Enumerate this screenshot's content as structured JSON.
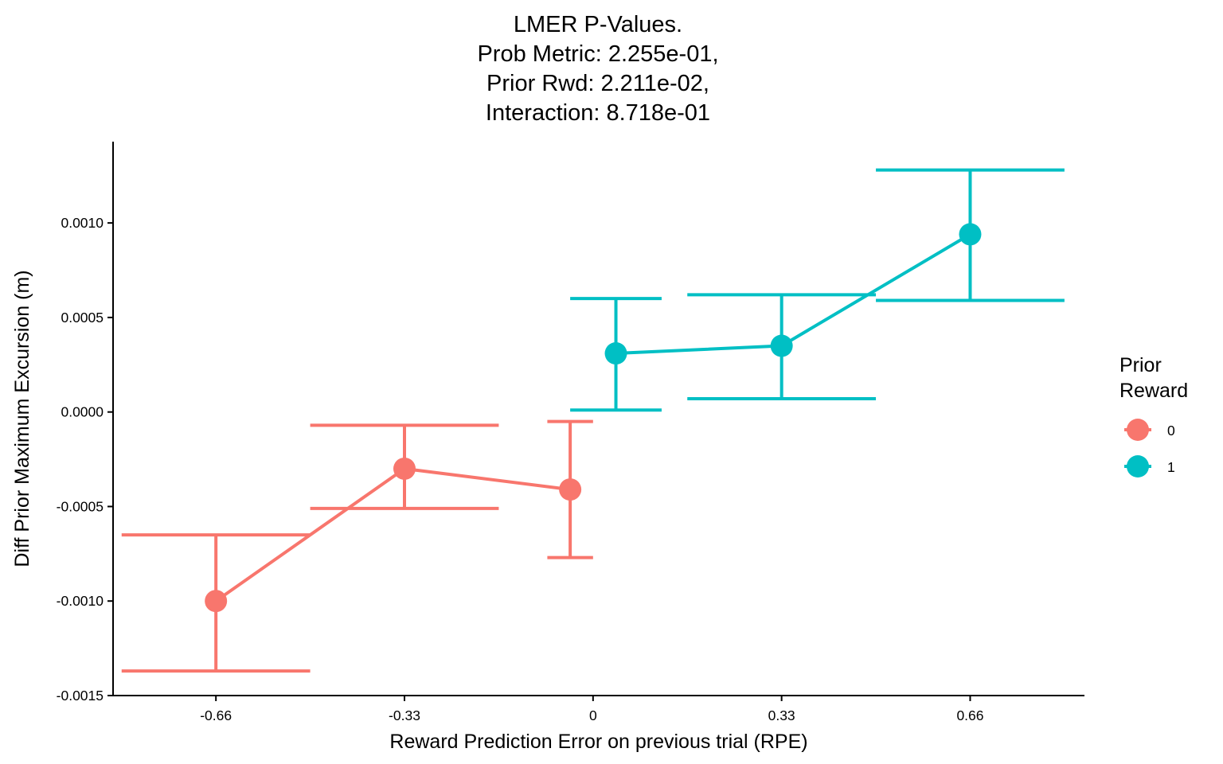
{
  "chart_data": {
    "type": "line",
    "title_lines": [
      "LMER P-Values.",
      "Prob Metric: 2.255e-01,",
      "Prior Rwd: 2.211e-02,",
      "Interaction: 8.718e-01"
    ],
    "xlabel": "Reward Prediction Error on previous trial (RPE)",
    "ylabel": "Diff Prior Maximum Excursion (m)",
    "x_ticks": [
      -0.66,
      -0.33,
      0,
      0.33,
      0.66
    ],
    "x_tick_labels": [
      "-0.66",
      "-0.33",
      "0",
      "0.33",
      "0.66"
    ],
    "y_ticks": [
      -0.0015,
      -0.001,
      -0.0005,
      0.0,
      0.0005,
      0.001
    ],
    "y_tick_labels": [
      "-0.0015",
      "-0.0010",
      "-0.0005",
      "0.0000",
      "0.0005",
      "0.0010"
    ],
    "xlim": [
      -0.84,
      0.86
    ],
    "ylim": [
      -0.0015,
      0.00143
    ],
    "grid": false,
    "legend": {
      "title_lines": [
        "Prior",
        "Reward"
      ],
      "placement": "right"
    },
    "series": [
      {
        "name": "0",
        "color": "#F8766D",
        "points": [
          {
            "x": -0.66,
            "y": -0.001,
            "lower": -0.00137,
            "upper": -0.00065,
            "err_halfwidth": 0.165
          },
          {
            "x": -0.33,
            "y": -0.0003,
            "lower": -0.00051,
            "upper": -7e-05,
            "err_halfwidth": 0.165
          },
          {
            "x": -0.04,
            "y": -0.00041,
            "lower": -0.00077,
            "upper": -5e-05,
            "err_halfwidth": 0.04
          }
        ]
      },
      {
        "name": "1",
        "color": "#00BFC4",
        "points": [
          {
            "x": 0.04,
            "y": 0.00031,
            "lower": 1e-05,
            "upper": 0.0006,
            "err_halfwidth": 0.08
          },
          {
            "x": 0.33,
            "y": 0.00035,
            "lower": 7e-05,
            "upper": 0.00062,
            "err_halfwidth": 0.165
          },
          {
            "x": 0.66,
            "y": 0.00094,
            "lower": 0.00059,
            "upper": 0.00128,
            "err_halfwidth": 0.165
          }
        ]
      }
    ]
  }
}
